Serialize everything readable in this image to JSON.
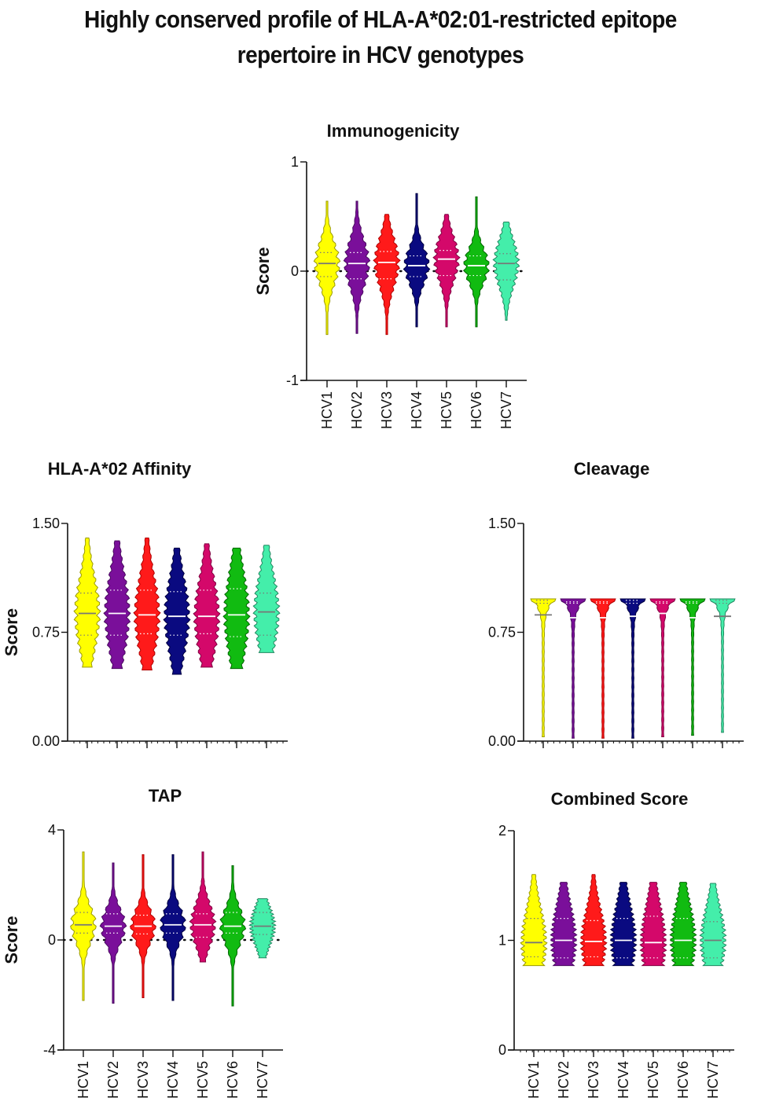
{
  "title": "Highly conserved profile of HLA-A*02:01-restricted epitope repertoire in HCV genotypes",
  "colors": {
    "HCV1": "#ffff00",
    "HCV2": "#7a0f9a",
    "HCV3": "#ff1a1a",
    "HCV4": "#0a0a80",
    "HCV5": "#d4086a",
    "HCV6": "#11bb11",
    "HCV7": "#44eeaa"
  },
  "outline_colors": {
    "HCV1": "#9a9a00",
    "HCV2": "#4a0a60",
    "HCV3": "#b00000",
    "HCV4": "#000040",
    "HCV5": "#800040",
    "HCV6": "#006600",
    "HCV7": "#208860"
  },
  "chart_data": [
    {
      "id": "immunogenicity",
      "type": "violin",
      "title": "Immunogenicity",
      "ylabel": "Score",
      "xlabel": "",
      "ylim": [
        -1,
        1
      ],
      "yticks": [
        "-1",
        "0",
        "1"
      ],
      "ytick_values": [
        -1,
        0,
        1
      ],
      "reference_line": 0,
      "show_category_labels": true,
      "categories": [
        "HCV1",
        "HCV2",
        "HCV3",
        "HCV4",
        "HCV5",
        "HCV6",
        "HCV7"
      ],
      "series": [
        {
          "name": "HCV1",
          "min": -0.58,
          "q1": -0.05,
          "median": 0.07,
          "q3": 0.17,
          "max": 0.64
        },
        {
          "name": "HCV2",
          "min": -0.57,
          "q1": -0.07,
          "median": 0.07,
          "q3": 0.17,
          "max": 0.64
        },
        {
          "name": "HCV3",
          "min": -0.58,
          "q1": -0.07,
          "median": 0.08,
          "q3": 0.18,
          "max": 0.52
        },
        {
          "name": "HCV4",
          "min": -0.51,
          "q1": -0.05,
          "median": 0.05,
          "q3": 0.14,
          "max": 0.71
        },
        {
          "name": "HCV5",
          "min": -0.51,
          "q1": -0.04,
          "median": 0.11,
          "q3": 0.19,
          "max": 0.52
        },
        {
          "name": "HCV6",
          "min": -0.51,
          "q1": -0.04,
          "median": 0.05,
          "q3": 0.14,
          "max": 0.68
        },
        {
          "name": "HCV7",
          "min": -0.45,
          "q1": -0.08,
          "median": 0.07,
          "q3": 0.16,
          "max": 0.45
        }
      ]
    },
    {
      "id": "affinity",
      "type": "violin",
      "title": "HLA-A*02 Affinity",
      "ylabel": "Score",
      "xlabel": "",
      "ylim": [
        0,
        1.5
      ],
      "yticks": [
        "0.00",
        "0.75",
        "1.50"
      ],
      "ytick_values": [
        0,
        0.75,
        1.5
      ],
      "reference_line": null,
      "show_category_labels": false,
      "categories": [
        "HCV1",
        "HCV2",
        "HCV3",
        "HCV4",
        "HCV5",
        "HCV6",
        "HCV7"
      ],
      "series": [
        {
          "name": "HCV1",
          "min": 0.51,
          "q1": 0.73,
          "median": 0.88,
          "q3": 1.02,
          "max": 1.4
        },
        {
          "name": "HCV2",
          "min": 0.5,
          "q1": 0.73,
          "median": 0.88,
          "q3": 1.04,
          "max": 1.38
        },
        {
          "name": "HCV3",
          "min": 0.49,
          "q1": 0.74,
          "median": 0.87,
          "q3": 1.04,
          "max": 1.4
        },
        {
          "name": "HCV4",
          "min": 0.46,
          "q1": 0.73,
          "median": 0.86,
          "q3": 1.03,
          "max": 1.33
        },
        {
          "name": "HCV5",
          "min": 0.51,
          "q1": 0.74,
          "median": 0.86,
          "q3": 1.04,
          "max": 1.36
        },
        {
          "name": "HCV6",
          "min": 0.5,
          "q1": 0.72,
          "median": 0.87,
          "q3": 1.05,
          "max": 1.33
        },
        {
          "name": "HCV7",
          "min": 0.61,
          "q1": 0.73,
          "median": 0.89,
          "q3": 1.02,
          "max": 1.35
        }
      ]
    },
    {
      "id": "cleavage",
      "type": "violin",
      "title": "Cleavage",
      "ylabel": "",
      "xlabel": "",
      "ylim": [
        0,
        1.5
      ],
      "yticks": [
        "0.00",
        "0.75",
        "1.50"
      ],
      "ytick_values": [
        0,
        0.75,
        1.5
      ],
      "reference_line": null,
      "show_category_labels": false,
      "categories": [
        "HCV1",
        "HCV2",
        "HCV3",
        "HCV4",
        "HCV5",
        "HCV6",
        "HCV7"
      ],
      "series": [
        {
          "name": "HCV1",
          "min": 0.03,
          "q1": 0.95,
          "median": 0.87,
          "q3": 0.97,
          "max": 0.98
        },
        {
          "name": "HCV2",
          "min": 0.02,
          "q1": 0.95,
          "median": 0.85,
          "q3": 0.96,
          "max": 0.98
        },
        {
          "name": "HCV3",
          "min": 0.02,
          "q1": 0.95,
          "median": 0.85,
          "q3": 0.96,
          "max": 0.98
        },
        {
          "name": "HCV4",
          "min": 0.02,
          "q1": 0.95,
          "median": 0.86,
          "q3": 0.97,
          "max": 0.98
        },
        {
          "name": "HCV5",
          "min": 0.03,
          "q1": 0.95,
          "median": 0.88,
          "q3": 0.96,
          "max": 0.98
        },
        {
          "name": "HCV6",
          "min": 0.04,
          "q1": 0.95,
          "median": 0.85,
          "q3": 0.96,
          "max": 0.98
        },
        {
          "name": "HCV7",
          "min": 0.06,
          "q1": 0.95,
          "median": 0.86,
          "q3": 0.97,
          "max": 0.98
        }
      ]
    },
    {
      "id": "tap",
      "type": "violin",
      "title": "TAP",
      "ylabel": "Score",
      "xlabel": "",
      "ylim": [
        -4,
        4
      ],
      "yticks": [
        "-4",
        "0",
        "4"
      ],
      "ytick_values": [
        -4,
        0,
        4
      ],
      "reference_line": 0,
      "show_category_labels": true,
      "categories": [
        "HCV1",
        "HCV2",
        "HCV3",
        "HCV4",
        "HCV5",
        "HCV6",
        "HCV7"
      ],
      "series": [
        {
          "name": "HCV1",
          "min": -2.2,
          "q1": 0.25,
          "median": 0.55,
          "q3": 1.0,
          "max": 3.2
        },
        {
          "name": "HCV2",
          "min": -2.3,
          "q1": 0.25,
          "median": 0.5,
          "q3": 0.95,
          "max": 2.8
        },
        {
          "name": "HCV3",
          "min": -2.1,
          "q1": 0.22,
          "median": 0.5,
          "q3": 0.9,
          "max": 3.1
        },
        {
          "name": "HCV4",
          "min": -2.2,
          "q1": 0.25,
          "median": 0.55,
          "q3": 0.95,
          "max": 3.1
        },
        {
          "name": "HCV5",
          "min": -0.8,
          "q1": 0.1,
          "median": 0.55,
          "q3": 0.95,
          "max": 3.2
        },
        {
          "name": "HCV6",
          "min": -2.4,
          "q1": 0.25,
          "median": 0.5,
          "q3": 1.0,
          "max": 2.7
        },
        {
          "name": "HCV7",
          "min": -0.65,
          "q1": 0.2,
          "median": 0.5,
          "q3": 1.0,
          "max": 1.5
        }
      ]
    },
    {
      "id": "combined",
      "type": "violin",
      "title": "Combined Score",
      "ylabel": "",
      "xlabel": "",
      "ylim": [
        0,
        2
      ],
      "yticks": [
        "0",
        "1",
        "2"
      ],
      "ytick_values": [
        0,
        1,
        2
      ],
      "reference_line": null,
      "show_category_labels": true,
      "categories": [
        "HCV1",
        "HCV2",
        "HCV3",
        "HCV4",
        "HCV5",
        "HCV6",
        "HCV7"
      ],
      "series": [
        {
          "name": "HCV1",
          "min": 0.77,
          "q1": 0.85,
          "median": 0.98,
          "q3": 1.2,
          "max": 1.6
        },
        {
          "name": "HCV2",
          "min": 0.77,
          "q1": 0.84,
          "median": 1.0,
          "q3": 1.2,
          "max": 1.53
        },
        {
          "name": "HCV3",
          "min": 0.77,
          "q1": 0.85,
          "median": 0.99,
          "q3": 1.18,
          "max": 1.6
        },
        {
          "name": "HCV4",
          "min": 0.77,
          "q1": 0.84,
          "median": 1.0,
          "q3": 1.2,
          "max": 1.53
        },
        {
          "name": "HCV5",
          "min": 0.77,
          "q1": 0.84,
          "median": 0.98,
          "q3": 1.22,
          "max": 1.53
        },
        {
          "name": "HCV6",
          "min": 0.77,
          "q1": 0.84,
          "median": 1.0,
          "q3": 1.2,
          "max": 1.53
        },
        {
          "name": "HCV7",
          "min": 0.77,
          "q1": 0.84,
          "median": 1.0,
          "q3": 1.17,
          "max": 1.52
        }
      ]
    }
  ]
}
